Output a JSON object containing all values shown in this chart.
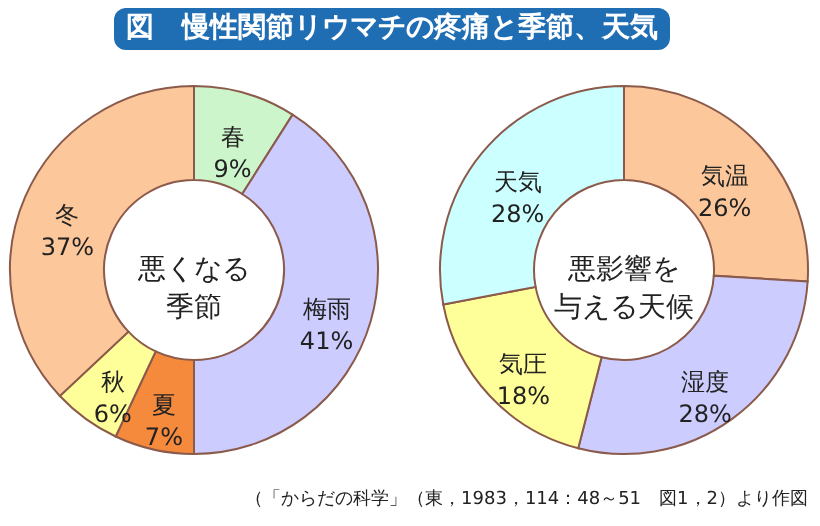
{
  "chart_data": [
    {
      "type": "donut",
      "annotations": [
        "悪くなる",
        "季節"
      ],
      "categories": [
        "春",
        "梅雨",
        "夏",
        "秋",
        "冬"
      ],
      "values": [
        9,
        41,
        7,
        6,
        37
      ],
      "value_labels": [
        "9%",
        "41%",
        "7%",
        "6%",
        "37%"
      ],
      "colors": [
        "#ccf5cc",
        "#ccccff",
        "#f58a3c",
        "#ffff99",
        "#fcc89b"
      ]
    },
    {
      "type": "donut",
      "annotations": [
        "悪影響を",
        "与える天候"
      ],
      "categories": [
        "気温",
        "湿度",
        "気圧",
        "天気"
      ],
      "values": [
        26,
        28,
        18,
        28
      ],
      "value_labels": [
        "26%",
        "28%",
        "18%",
        "28%"
      ],
      "colors": [
        "#fcc89b",
        "#ccccff",
        "#ffff99",
        "#ccffff"
      ]
    },
    {
      "type": "other",
      "title": "図　慢性関節リウマチの疼痛と季節、天気",
      "annotations": [
        "（「からだの科学」（東，1983，114：48～51　図1，2）より作図"
      ]
    }
  ]
}
